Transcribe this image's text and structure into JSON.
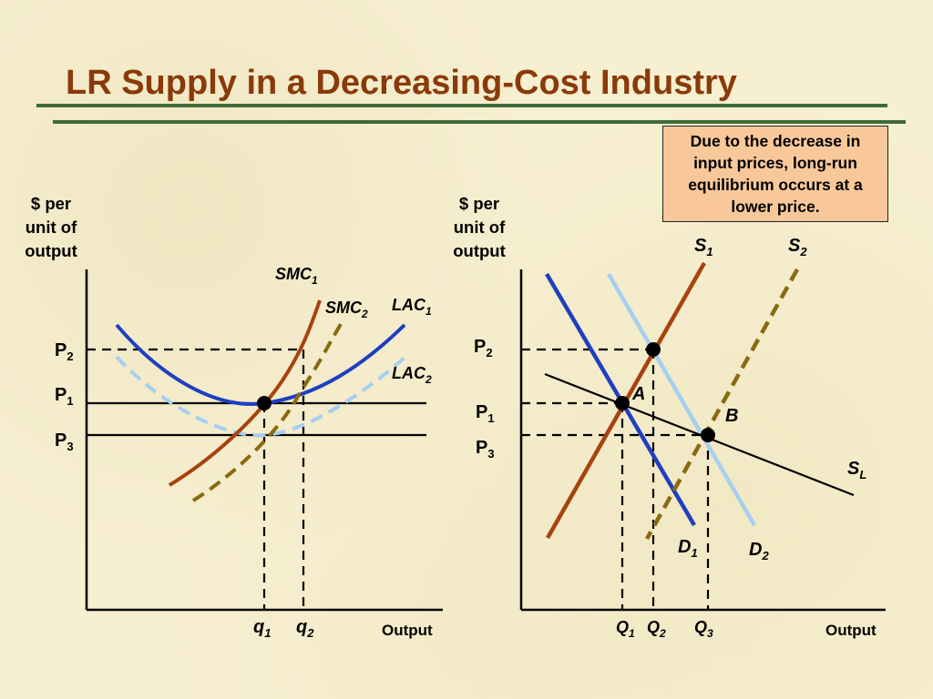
{
  "title": "LR Supply in a Decreasing-Cost Industry",
  "callout": {
    "text": "Due to the decrease in input prices, long-run equilibrium occurs at a lower price."
  },
  "left_graph": {
    "y_axis_label": [
      "$ per",
      "unit of",
      "output"
    ],
    "x_axis_label": "Output",
    "price_labels": [
      {
        "base": "P",
        "sub": "2"
      },
      {
        "base": "P",
        "sub": "1"
      },
      {
        "base": "P",
        "sub": "3"
      }
    ],
    "quantity_labels": [
      {
        "base": "q",
        "sub": "1"
      },
      {
        "base": "q",
        "sub": "2"
      }
    ],
    "curve_labels": {
      "smc1": {
        "base": "SMC",
        "sub": "1"
      },
      "smc2": {
        "base": "SMC",
        "sub": "2"
      },
      "lac1": {
        "base": "LAC",
        "sub": "1"
      },
      "lac2": {
        "base": "LAC",
        "sub": "2"
      }
    }
  },
  "right_graph": {
    "y_axis_label": [
      "$ per",
      "unit of",
      "output"
    ],
    "x_axis_label": "Output",
    "price_labels": [
      {
        "base": "P",
        "sub": "2"
      },
      {
        "base": "P",
        "sub": "1"
      },
      {
        "base": "P",
        "sub": "3"
      }
    ],
    "quantity_labels": [
      {
        "base": "Q",
        "sub": "1"
      },
      {
        "base": "Q",
        "sub": "2"
      },
      {
        "base": "Q",
        "sub": "3"
      }
    ],
    "curve_labels": {
      "s1": {
        "base": "S",
        "sub": "1"
      },
      "s2": {
        "base": "S",
        "sub": "2"
      },
      "sl": {
        "base": "S",
        "sub": "L"
      },
      "d1": {
        "base": "D",
        "sub": "1"
      },
      "d2": {
        "base": "D",
        "sub": "2"
      }
    },
    "point_labels": {
      "a": "A",
      "b": "B"
    }
  },
  "colors": {
    "title": "#8a3a0a",
    "rule": "#3f6b3a",
    "callout_fill": "#f9c89a",
    "smc1_s1": "#a8420e",
    "smc2_s2": "#8a6a10",
    "lac1_d1": "#1f3fc0",
    "lac2_d2": "#a6cff0",
    "axes": "#000000"
  }
}
